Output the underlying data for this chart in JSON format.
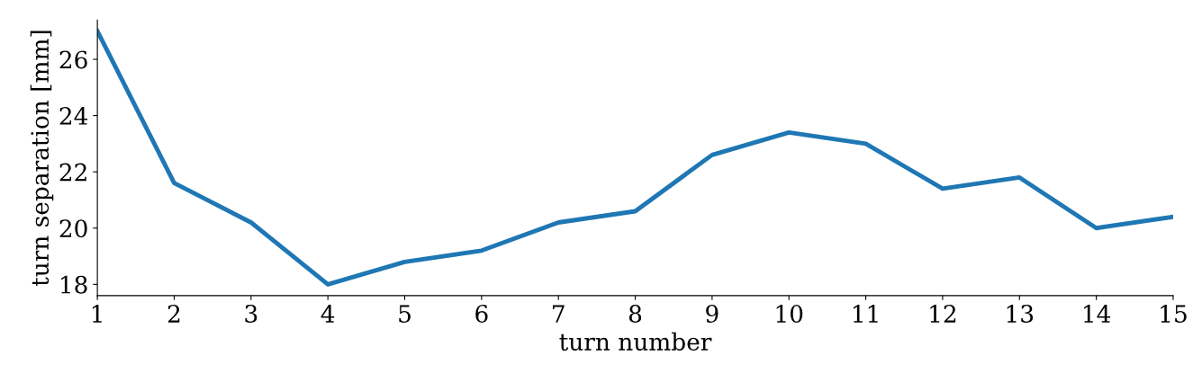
{
  "chart_data": {
    "type": "line",
    "xlabel": "turn number",
    "ylabel": "turn separation [mm]",
    "x": [
      1,
      2,
      3,
      4,
      5,
      6,
      7,
      8,
      9,
      10,
      11,
      12,
      13,
      14,
      15
    ],
    "series": [
      {
        "color": "#1f77b4",
        "values": [
          27.0,
          21.6,
          20.2,
          18.0,
          18.8,
          19.2,
          20.2,
          20.6,
          22.6,
          23.4,
          23.0,
          21.4,
          21.8,
          20.0,
          20.4
        ]
      }
    ],
    "xlim": [
      1,
      15
    ],
    "xticks": [
      1,
      2,
      3,
      4,
      5,
      6,
      7,
      8,
      9,
      10,
      11,
      12,
      13,
      14,
      15
    ],
    "ylim": [
      17.6,
      27.4
    ],
    "yticks": [
      18,
      20,
      22,
      24,
      26
    ],
    "marker": "none",
    "line_style": "solid"
  }
}
